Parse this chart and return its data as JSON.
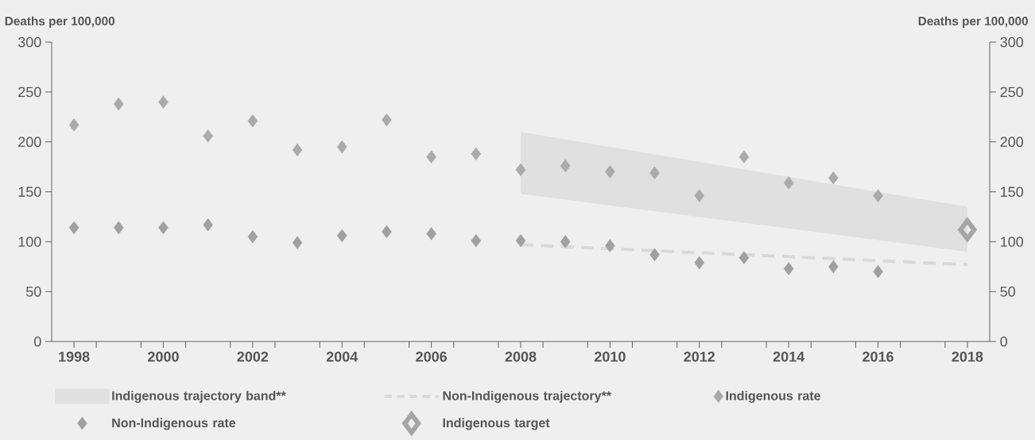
{
  "chart_data": {
    "type": "scatter",
    "ylabel": "Deaths per 100,000",
    "y2label": "Deaths per 100,000",
    "xlim": [
      1997.5,
      2018.5
    ],
    "xticks": [
      1998,
      {
        "value": 1998.5,
        "label": null
      },
      {
        "value": 1999.5,
        "label": null
      },
      2000,
      {
        "value": 2000.5,
        "label": null
      },
      {
        "value": 2001.5,
        "label": null
      },
      2002,
      {
        "value": 2002.5,
        "label": null
      },
      {
        "value": 2003.5,
        "label": null
      },
      2004,
      {
        "value": 2004.5,
        "label": null
      },
      {
        "value": 2005.5,
        "label": null
      },
      2006,
      {
        "value": 2006.5,
        "label": null
      },
      {
        "value": 2007.5,
        "label": null
      },
      2008,
      {
        "value": 2008.5,
        "label": null
      },
      {
        "value": 2009.5,
        "label": null
      },
      2010,
      {
        "value": 2010.5,
        "label": null
      },
      {
        "value": 2011.5,
        "label": null
      },
      2012,
      {
        "value": 2012.5,
        "label": null
      },
      {
        "value": 2013.5,
        "label": null
      },
      2014,
      {
        "value": 2014.5,
        "label": null
      },
      {
        "value": 2015.5,
        "label": null
      },
      2016,
      {
        "value": 2016.5,
        "label": null
      },
      {
        "value": 2017.5,
        "label": null
      },
      2018
    ],
    "ylim": [
      0,
      300
    ],
    "yticks": [
      0,
      50,
      100,
      150,
      200,
      250,
      300
    ],
    "y2lim": [
      0,
      300
    ],
    "y2ticks": [
      0,
      50,
      100,
      150,
      200,
      250,
      300
    ],
    "legend": "bottom",
    "series": [
      {
        "name": "Indigenous trajectory band**",
        "type": "area",
        "color": "#e0e0e0",
        "x": [
          2008,
          2018
        ],
        "values": [
          null,
          null
        ],
        "lower": [
          148,
          90
        ],
        "upper": [
          210,
          135
        ]
      },
      {
        "name": "Non-Indigenous trajectory**",
        "type": "line",
        "line_style": "dashed",
        "marker": "none",
        "color": "#d9d9d9",
        "x": [
          2008,
          2018
        ],
        "values": [
          97,
          77
        ]
      },
      {
        "name": "Indigenous rate",
        "marker": "diamond",
        "color": "#aaaaaa",
        "x": [
          1998,
          1999,
          2000,
          2001,
          2002,
          2003,
          2004,
          2005,
          2006,
          2007,
          2008,
          2009,
          2010,
          2011,
          2012,
          2013,
          2014,
          2015,
          2016
        ],
        "values": [
          217,
          238,
          240,
          206,
          221,
          192,
          195,
          222,
          185,
          188,
          172,
          176,
          170,
          169,
          146,
          185,
          159,
          164,
          146
        ]
      },
      {
        "name": "Non-Indigenous rate",
        "marker": "diamond",
        "color": "#a0a0a0",
        "x": [
          1998,
          1999,
          2000,
          2001,
          2002,
          2003,
          2004,
          2005,
          2006,
          2007,
          2008,
          2009,
          2010,
          2011,
          2012,
          2013,
          2014,
          2015,
          2016
        ],
        "values": [
          114,
          114,
          114,
          117,
          105,
          99,
          106,
          110,
          108,
          101,
          101,
          100,
          96,
          87,
          79,
          84,
          73,
          75,
          70
        ]
      },
      {
        "name": "Indigenous target",
        "marker": "diamond",
        "color": "#a6a6a6",
        "x": [
          2018
        ],
        "values": [
          112
        ]
      }
    ]
  }
}
